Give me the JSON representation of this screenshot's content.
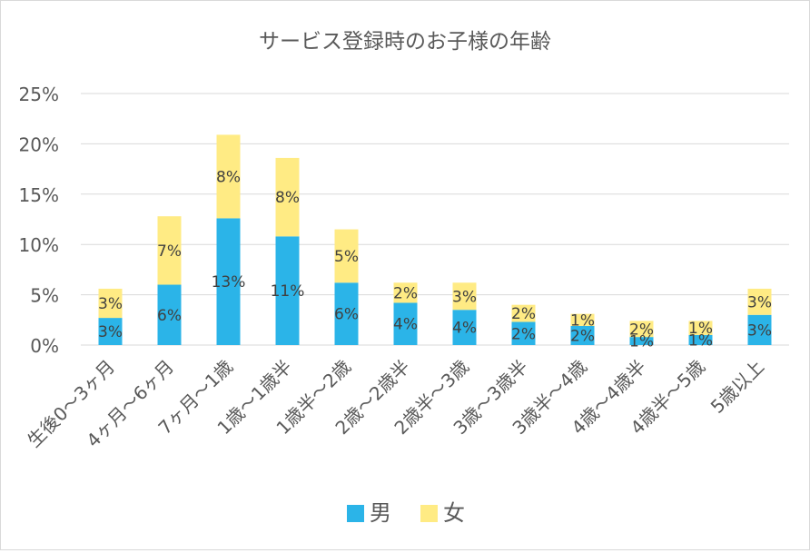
{
  "chart_data": {
    "type": "bar",
    "stacked": true,
    "title": "サービス登録時のお子様の年齢",
    "xlabel": "",
    "ylabel": "",
    "ylim": [
      0,
      25
    ],
    "yticks": [
      0,
      5,
      10,
      15,
      20,
      25
    ],
    "ytick_labels": [
      "0%",
      "5%",
      "10%",
      "15%",
      "20%",
      "25%"
    ],
    "grid": true,
    "legend_position": "bottom",
    "categories": [
      "生後0～3ヶ月",
      "4ヶ月～6ヶ月",
      "7ヶ月～1歳",
      "1歳～1歳半",
      "1歳半～2歳",
      "2歳～2歳半",
      "2歳半～3歳",
      "3歳～3歳半",
      "3歳半～4歳",
      "4歳～4歳半",
      "4歳半～5歳",
      "5歳以上"
    ],
    "series": [
      {
        "name": "男",
        "color": "#2BB4E8",
        "values": [
          2.7,
          6.0,
          12.6,
          10.8,
          6.2,
          4.2,
          3.5,
          2.3,
          1.9,
          0.8,
          1.0,
          3.0
        ],
        "labels": [
          "3%",
          "6%",
          "13%",
          "11%",
          "6%",
          "4%",
          "4%",
          "2%",
          "2%",
          "1%",
          "1%",
          "3%"
        ]
      },
      {
        "name": "女",
        "color": "#FFEB84",
        "values": [
          2.9,
          6.8,
          8.3,
          7.8,
          5.3,
          2.0,
          2.7,
          1.7,
          1.2,
          1.6,
          1.4,
          2.6
        ],
        "labels": [
          "3%",
          "7%",
          "8%",
          "8%",
          "5%",
          "2%",
          "3%",
          "2%",
          "1%",
          "2%",
          "1%",
          "3%"
        ]
      }
    ]
  }
}
